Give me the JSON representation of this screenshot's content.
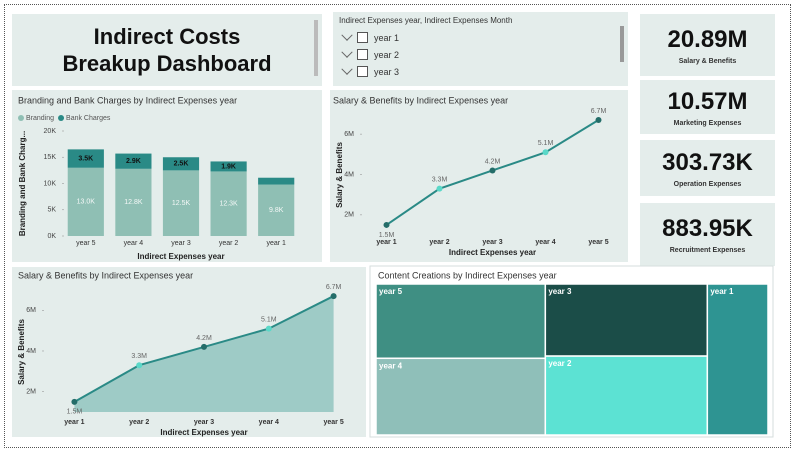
{
  "header": {
    "title": "Indirect Costs Breakup Dashboard"
  },
  "slicer": {
    "header": "Indirect Expenses year, Indirect Expenses Month",
    "items": [
      "year 1",
      "year 2",
      "year 3"
    ]
  },
  "cards": [
    {
      "value": "20.89M",
      "label": "Salary & Benefits"
    },
    {
      "value": "10.57M",
      "label": "Marketing Expenses"
    },
    {
      "value": "303.73K",
      "label": "Operation Expenses"
    },
    {
      "value": "883.95K",
      "label": "Recruitment Expenses"
    }
  ],
  "chart_data": [
    {
      "type": "stacked_bar",
      "title": "Branding and Bank Charges by Indirect Expenses year",
      "x_label": "Indirect Expenses year",
      "y_label": "Branding and Bank Charg...",
      "categories": [
        "year 5",
        "year 4",
        "year 3",
        "year 2",
        "year 1"
      ],
      "series": [
        {
          "name": "Branding",
          "color": "#8fbfb4",
          "values": [
            13000,
            12800,
            12500,
            12300,
            9800
          ],
          "value_labels": [
            "13.0K",
            "12.8K",
            "12.5K",
            "12.3K",
            "9.8K"
          ]
        },
        {
          "name": "Bank Charges",
          "color": "#2a8a86",
          "values": [
            3500,
            2900,
            2500,
            1900,
            1300
          ],
          "value_labels": [
            "3.5K",
            "2.9K",
            "2.5K",
            "1.9K",
            null
          ]
        }
      ],
      "ylim": [
        0,
        20000
      ],
      "yticks": [
        {
          "value": 0,
          "label": "0K"
        },
        {
          "value": 5000,
          "label": "5K"
        },
        {
          "value": 10000,
          "label": "10K"
        },
        {
          "value": 15000,
          "label": "15K"
        },
        {
          "value": 20000,
          "label": "20K"
        }
      ],
      "legend": "top-left"
    },
    {
      "type": "line",
      "title": "Salary & Benefits by Indirect Expenses year",
      "x_label": "Indirect Expenses year",
      "y_label": "Salary & Benefits",
      "categories": [
        "year 1",
        "year 2",
        "year 3",
        "year 4",
        "year 5"
      ],
      "values": [
        1500000,
        3300000,
        4200000,
        5100000,
        6700000
      ],
      "value_labels": [
        "1.5M",
        "3.3M",
        "4.2M",
        "5.1M",
        "6.7M"
      ],
      "color": "#2a8a86",
      "ylim": [
        1150000,
        6800000
      ],
      "yticks": [
        {
          "value": 2000000,
          "label": "2M"
        },
        {
          "value": 4000000,
          "label": "4M"
        },
        {
          "value": 6000000,
          "label": "6M"
        }
      ]
    },
    {
      "type": "area",
      "title": "Salary & Benefits by Indirect Expenses year",
      "x_label": "Indirect Expenses year",
      "y_label": "Salary & Benefits",
      "categories": [
        "year 1",
        "year 2",
        "year 3",
        "year 4",
        "year 5"
      ],
      "values": [
        1500000,
        3300000,
        4200000,
        5100000,
        6700000
      ],
      "value_labels": [
        "1.5M",
        "3.3M",
        "4.2M",
        "5.1M",
        "6.7M"
      ],
      "color": "#2a8a86",
      "fill_color": "#9ecbc6",
      "ylim": [
        1000000,
        6900000
      ],
      "yticks": [
        {
          "value": 2000000,
          "label": "2M"
        },
        {
          "value": 4000000,
          "label": "4M"
        },
        {
          "value": 6000000,
          "label": "6M"
        }
      ]
    },
    {
      "type": "treemap",
      "title": "Content Creations by Indirect Expenses year",
      "categories": [
        "year 5",
        "year 4",
        "year 3",
        "year 2",
        "year 1"
      ],
      "values": [
        12.5,
        12.9,
        11.6,
        12.7,
        9.1
      ],
      "colors": [
        "#3f8f83",
        "#8fbfb9",
        "#1b4d48",
        "#5ce2d3",
        "#2e9492"
      ]
    }
  ]
}
